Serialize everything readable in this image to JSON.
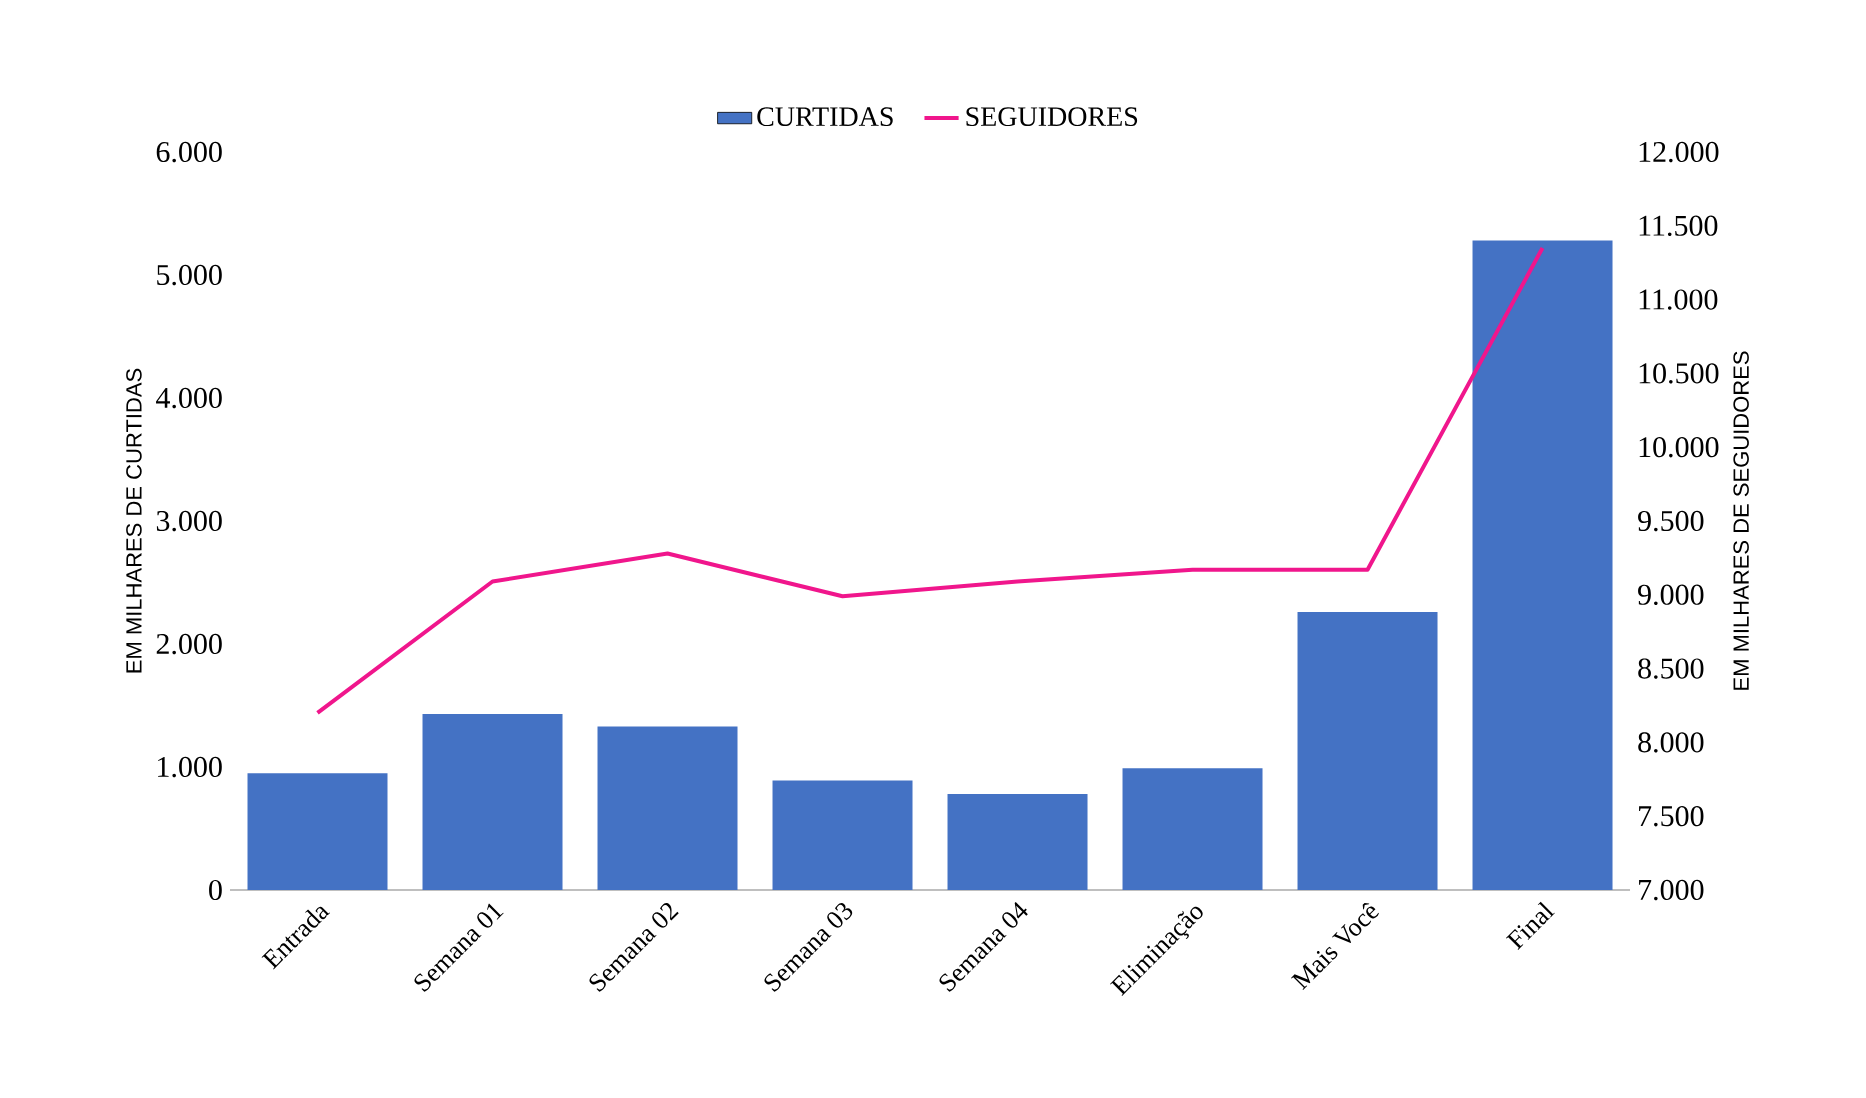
{
  "chart_data": {
    "type": "bar",
    "categories": [
      "Entrada",
      "Semana 01",
      "Semana 02",
      "Semana 03",
      "Semana 04",
      "Eliminação",
      "Mais Você",
      "Final"
    ],
    "series": [
      {
        "name": "CURTIDAS",
        "color": "#4472c4",
        "values": [
          950,
          1430,
          1330,
          890,
          780,
          990,
          2260,
          5280
        ]
      },
      {
        "name": "SEGUIDORES",
        "type": "line",
        "axis": "y2",
        "color": "#f0168c",
        "values": [
          8200,
          9090,
          9280,
          8990,
          9090,
          9170,
          9170,
          11350
        ]
      }
    ],
    "ylabel": "EM MILHARES DE CURTIDAS",
    "y2label": "EM MILHARES DE SEGUIDORES",
    "ylim": [
      0,
      6000
    ],
    "yticks": [
      {
        "value": 0,
        "label": "0"
      },
      {
        "value": 1000,
        "label": "1.000"
      },
      {
        "value": 2000,
        "label": "2.000"
      },
      {
        "value": 3000,
        "label": "3.000"
      },
      {
        "value": 4000,
        "label": "4.000"
      },
      {
        "value": 5000,
        "label": "5.000"
      },
      {
        "value": 6000,
        "label": "6.000"
      }
    ],
    "y2lim": [
      7000,
      12000
    ],
    "y2ticks": [
      {
        "value": 7000,
        "label": "7.000"
      },
      {
        "value": 7500,
        "label": "7.500"
      },
      {
        "value": 8000,
        "label": "8.000"
      },
      {
        "value": 8500,
        "label": "8.500"
      },
      {
        "value": 9000,
        "label": "9.000"
      },
      {
        "value": 9500,
        "label": "9.500"
      },
      {
        "value": 10000,
        "label": "10.000"
      },
      {
        "value": 10500,
        "label": "10.500"
      },
      {
        "value": 11000,
        "label": "11.000"
      },
      {
        "value": 11500,
        "label": "11.500"
      },
      {
        "value": 12000,
        "label": "12.000"
      }
    ],
    "legend": "top",
    "grid": false
  }
}
